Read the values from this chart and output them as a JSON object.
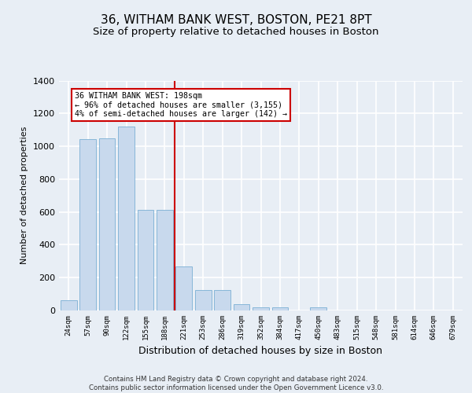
{
  "title": "36, WITHAM BANK WEST, BOSTON, PE21 8PT",
  "subtitle": "Size of property relative to detached houses in Boston",
  "xlabel": "Distribution of detached houses by size in Boston",
  "ylabel": "Number of detached properties",
  "footer": "Contains HM Land Registry data © Crown copyright and database right 2024.\nContains public sector information licensed under the Open Government Licence v3.0.",
  "bin_labels": [
    "24sqm",
    "57sqm",
    "90sqm",
    "122sqm",
    "155sqm",
    "188sqm",
    "221sqm",
    "253sqm",
    "286sqm",
    "319sqm",
    "352sqm",
    "384sqm",
    "417sqm",
    "450sqm",
    "483sqm",
    "515sqm",
    "548sqm",
    "581sqm",
    "614sqm",
    "646sqm",
    "679sqm"
  ],
  "bar_values": [
    60,
    1045,
    1050,
    1120,
    615,
    615,
    270,
    125,
    125,
    40,
    20,
    20,
    0,
    20,
    0,
    0,
    0,
    0,
    0,
    0,
    0
  ],
  "bar_color": "#c8d9ed",
  "bar_edge_color": "#7aafd4",
  "vline_x": 5.5,
  "annotation_text": "36 WITHAM BANK WEST: 198sqm\n← 96% of detached houses are smaller (3,155)\n4% of semi-detached houses are larger (142) →",
  "annotation_box_facecolor": "#ffffff",
  "annotation_box_edgecolor": "#cc0000",
  "ylim": [
    0,
    1400
  ],
  "yticks": [
    0,
    200,
    400,
    600,
    800,
    1000,
    1200,
    1400
  ],
  "bg_color": "#e8eef5",
  "grid_color": "#ffffff",
  "title_fontsize": 11,
  "subtitle_fontsize": 9.5,
  "ylabel_fontsize": 8,
  "xlabel_fontsize": 9
}
